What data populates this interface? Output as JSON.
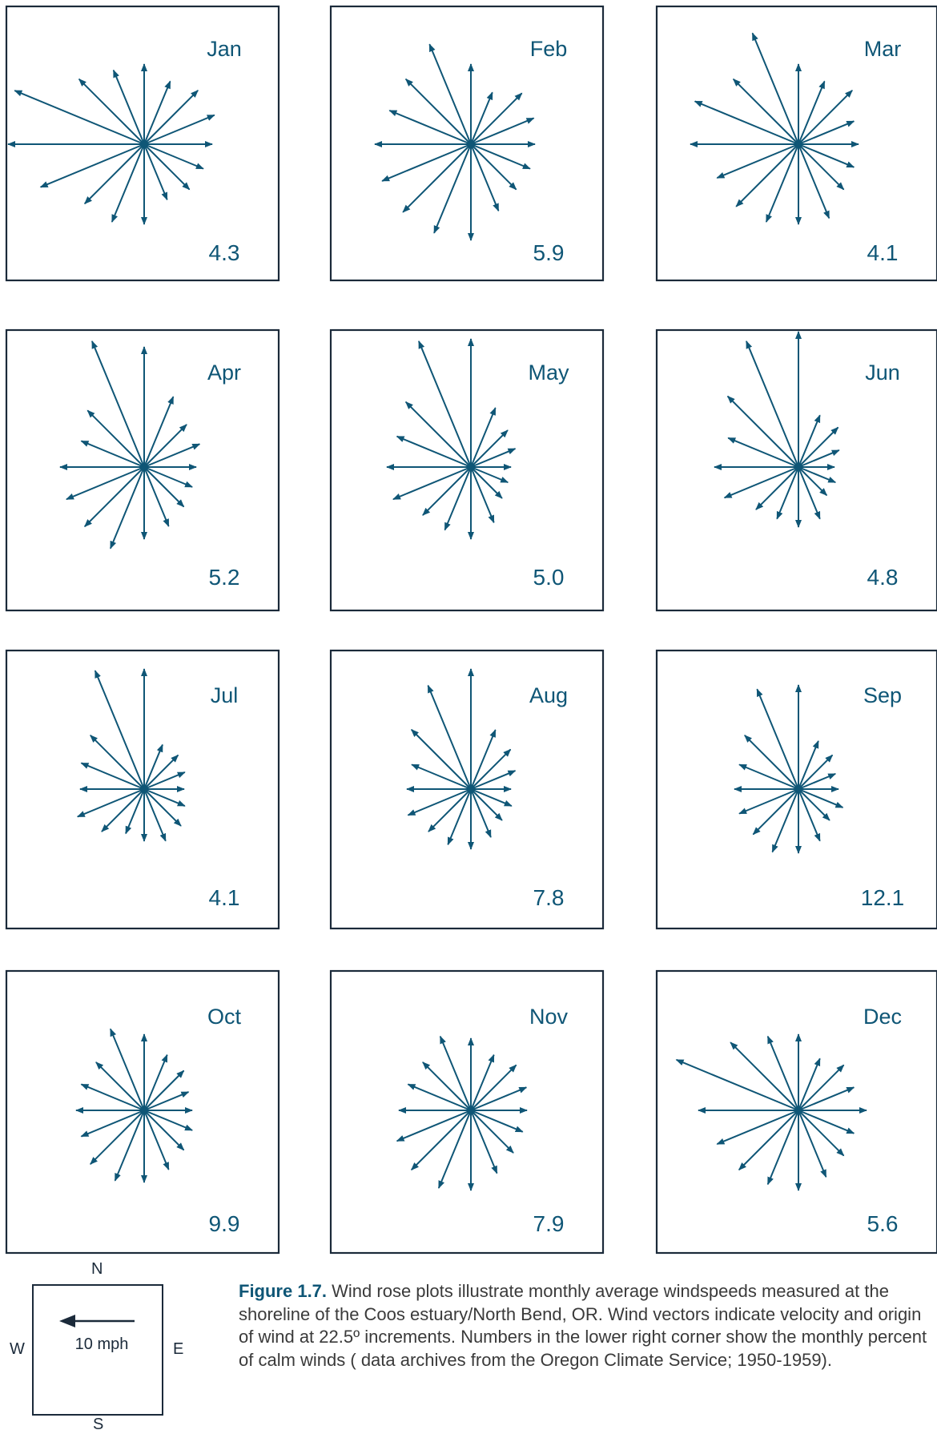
{
  "chart_data": {
    "type": "wind-rose",
    "direction_increment_degrees": 22.5,
    "directions": [
      "N",
      "NNE",
      "NE",
      "ENE",
      "E",
      "ESE",
      "SE",
      "SSE",
      "S",
      "SSW",
      "SW",
      "WSW",
      "W",
      "WNW",
      "NW",
      "NNW"
    ],
    "arrow_color": "#0f5676",
    "panels": [
      {
        "month": "Jan",
        "calm_percent": "4.3",
        "vectors": [
          10,
          8.5,
          9.5,
          9.5,
          8.5,
          8,
          8,
          7.5,
          10,
          10.5,
          10.5,
          14,
          17,
          17.5,
          11.5,
          10
        ]
      },
      {
        "month": "Feb",
        "calm_percent": "5.9",
        "vectors": [
          10,
          7,
          9,
          8.5,
          8,
          8,
          8,
          9,
          12,
          12,
          12,
          12,
          12,
          11,
          11.5,
          13.5
        ]
      },
      {
        "month": "Mar",
        "calm_percent": "4.1",
        "vectors": [
          10,
          8.5,
          9.5,
          7.5,
          7.5,
          7.5,
          8,
          10,
          10,
          10.5,
          11,
          11,
          13.5,
          14,
          11.5,
          15
        ]
      },
      {
        "month": "Apr",
        "calm_percent": "5.2",
        "vectors": [
          15,
          9.5,
          7.5,
          7.5,
          6.5,
          6.5,
          7,
          8,
          9,
          11,
          10.5,
          10.5,
          10.5,
          8.5,
          10,
          17
        ]
      },
      {
        "month": "May",
        "calm_percent": "5.0",
        "vectors": [
          16,
          8,
          6.5,
          6,
          5,
          5,
          5.5,
          7.5,
          9,
          8.5,
          8.5,
          10.5,
          10.5,
          10,
          11.5,
          17
        ]
      },
      {
        "month": "Jun",
        "calm_percent": "4.8",
        "vectors": [
          17,
          7,
          7,
          5.5,
          4.5,
          5,
          5,
          7,
          7.5,
          7,
          7.5,
          10,
          10.5,
          9.5,
          12.5,
          17
        ]
      },
      {
        "month": "Jul",
        "calm_percent": "4.1",
        "vectors": [
          15,
          6,
          6,
          5.5,
          5,
          5.5,
          6.5,
          7,
          6.5,
          6,
          7.5,
          9,
          8,
          8.5,
          9.5,
          16
        ]
      },
      {
        "month": "Aug",
        "calm_percent": "7.8",
        "vectors": [
          15,
          8,
          7,
          6,
          5,
          5.5,
          5.5,
          6.5,
          7.5,
          7.5,
          7.5,
          8.5,
          8,
          8,
          10.5,
          14
        ]
      },
      {
        "month": "Sep",
        "calm_percent": "12.1",
        "vectors": [
          13,
          6.5,
          6,
          5,
          5,
          6,
          5.5,
          7,
          8,
          8.5,
          8,
          8,
          8,
          8,
          9.5,
          13.5
        ]
      },
      {
        "month": "Oct",
        "calm_percent": "9.9",
        "vectors": [
          9.5,
          7.5,
          7,
          6,
          6,
          6.5,
          7,
          8,
          9,
          9.5,
          9.5,
          8.5,
          8.5,
          8.5,
          8.5,
          11
        ]
      },
      {
        "month": "Nov",
        "calm_percent": "7.9",
        "vectors": [
          9,
          7.5,
          8,
          7.5,
          7,
          7,
          7.5,
          8.5,
          10,
          10.5,
          10.5,
          10,
          9,
          8.5,
          8.5,
          10
        ]
      },
      {
        "month": "Dec",
        "calm_percent": "5.6",
        "vectors": [
          9.5,
          7,
          8,
          7.5,
          8.5,
          7.5,
          8,
          9,
          10,
          10,
          10.5,
          11,
          12.5,
          16.5,
          12,
          10
        ]
      }
    ]
  },
  "legend": {
    "north": "N",
    "south": "S",
    "east": "E",
    "west": "W",
    "scale_label": "10  mph",
    "scale_mph": 10
  },
  "caption": {
    "label": "Figure 1.7.",
    "text": " Wind rose plots illustrate monthly average windspeeds measured at the shoreline of the Coos estuary/North Bend, OR.  Wind vectors indicate velocity and origin of wind at 22.5º increments. Numbers in the lower right corner show the monthly percent of calm winds ( data archives from the Oregon Climate Service; 1950-1959)."
  }
}
